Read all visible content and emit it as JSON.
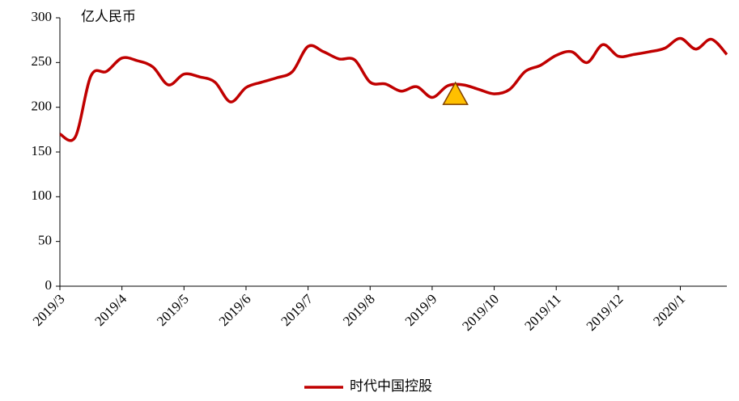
{
  "chart_data": {
    "type": "line",
    "y_label": "亿人民币",
    "categories": [
      "2019/3",
      null,
      null,
      null,
      "2019/4",
      null,
      null,
      null,
      "2019/5",
      null,
      null,
      null,
      "2019/6",
      null,
      null,
      null,
      "2019/7",
      null,
      null,
      null,
      "2019/8",
      null,
      null,
      null,
      "2019/9",
      null,
      null,
      null,
      "2019/10",
      null,
      null,
      null,
      "2019/11",
      null,
      null,
      null,
      "2019/12",
      null,
      null,
      null,
      "2020/1",
      null,
      null,
      null
    ],
    "series": [
      {
        "name": "时代中国控股",
        "color": "#c00000",
        "values": [
          170,
          167,
          235,
          240,
          255,
          252,
          245,
          225,
          237,
          234,
          228,
          206,
          222,
          228,
          233,
          240,
          268,
          262,
          254,
          253,
          228,
          226,
          218,
          223,
          211,
          224,
          225,
          220,
          215,
          220,
          240,
          247,
          258,
          262,
          250,
          270,
          257,
          259,
          262,
          266,
          277,
          265,
          276,
          259
        ]
      }
    ],
    "marker_value": 214,
    "marker_color": "#ffc000",
    "ylim": [
      0,
      300
    ],
    "yticks": [
      0,
      50,
      100,
      150,
      200,
      250,
      300
    ],
    "grid": false,
    "legend": "bottom"
  }
}
